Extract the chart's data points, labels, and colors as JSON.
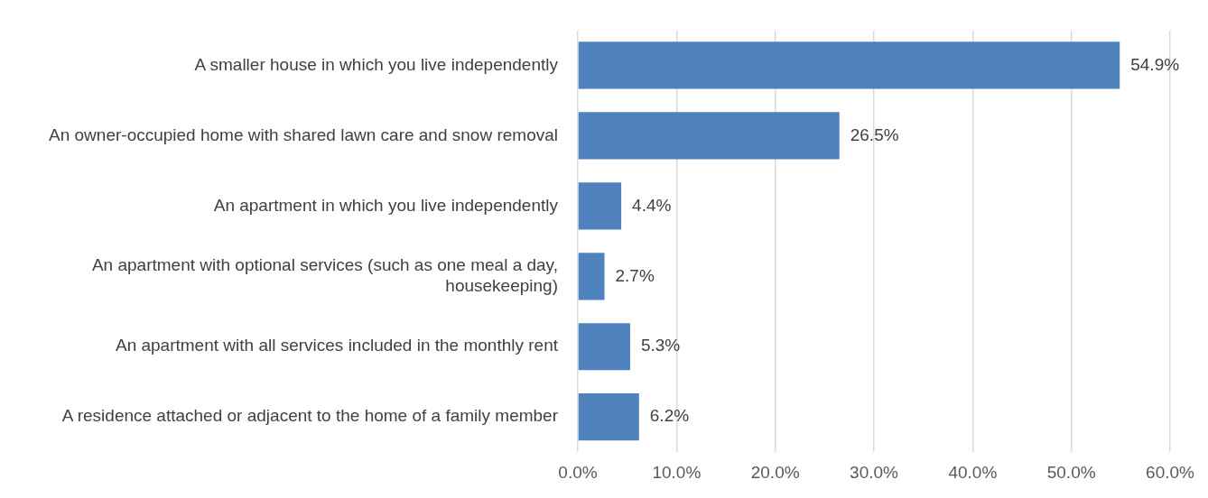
{
  "chart_data": {
    "type": "bar",
    "orientation": "horizontal",
    "categories": [
      "A smaller house in which you live independently",
      "An owner-occupied home with shared lawn care and snow removal",
      "An apartment in which you live independently",
      "An apartment with optional services (such as one meal a day, housekeeping)",
      "An apartment with all services included in the monthly rent",
      "A residence attached or adjacent to the home of a family member"
    ],
    "values": [
      54.9,
      26.5,
      4.4,
      2.7,
      5.3,
      6.2
    ],
    "value_labels": [
      "54.9%",
      "26.5%",
      "4.4%",
      "2.7%",
      "5.3%",
      "6.2%"
    ],
    "color": "#4f81bd",
    "xlim": [
      0,
      60
    ],
    "xticks": [
      {
        "value": 0,
        "label": "0.0%"
      },
      {
        "value": 10,
        "label": "10.0%"
      },
      {
        "value": 20,
        "label": "20.0%"
      },
      {
        "value": 30,
        "label": "30.0%"
      },
      {
        "value": 40,
        "label": "40.0%"
      },
      {
        "value": 50,
        "label": "50.0%"
      },
      {
        "value": 60,
        "label": "60.0%"
      }
    ],
    "grid": "x",
    "legend": false
  }
}
